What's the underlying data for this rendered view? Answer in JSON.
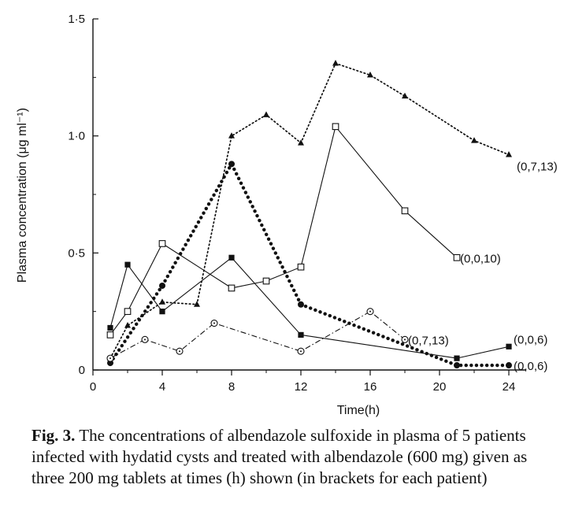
{
  "chart_data": {
    "type": "line",
    "xlabel": "Time(h)",
    "ylabel": "Plasma concentration (μg ml⁻¹)",
    "xlim": [
      0,
      25
    ],
    "ylim": [
      0,
      1.5
    ],
    "x_ticks": [
      0,
      4,
      8,
      12,
      16,
      20,
      24
    ],
    "x_tick_labels": [
      "0",
      "4",
      "8",
      "12",
      "16",
      "20",
      "24"
    ],
    "y_ticks": [
      0,
      0.5,
      1.0,
      1.5
    ],
    "y_tick_labels": [
      "0",
      "0·5",
      "1·0",
      "1·5"
    ],
    "grid": false,
    "legend": "none (labels at line ends)",
    "series": [
      {
        "label": "(0,7,13)",
        "marker": "filled-triangle",
        "line": "dotted",
        "points": [
          [
            1,
            0.05
          ],
          [
            2,
            0.19
          ],
          [
            4,
            0.29
          ],
          [
            6,
            0.28
          ],
          [
            8,
            1.0
          ],
          [
            10,
            1.09
          ],
          [
            12,
            0.97
          ],
          [
            14,
            1.31
          ],
          [
            16,
            1.26
          ],
          [
            18,
            1.17
          ],
          [
            22,
            0.98
          ],
          [
            24,
            0.92
          ]
        ]
      },
      {
        "label": "(0,0,10)",
        "marker": "open-square",
        "line": "solid",
        "points": [
          [
            1,
            0.15
          ],
          [
            2,
            0.25
          ],
          [
            4,
            0.54
          ],
          [
            8,
            0.35
          ],
          [
            10,
            0.38
          ],
          [
            12,
            0.44
          ],
          [
            14,
            1.04
          ],
          [
            18,
            0.68
          ],
          [
            21,
            0.48
          ]
        ]
      },
      {
        "label": "(0,0,6)",
        "marker": "filled-circle",
        "line": "heavy-dotted",
        "points": [
          [
            1,
            0.03
          ],
          [
            4,
            0.36
          ],
          [
            8,
            0.88
          ],
          [
            12,
            0.28
          ],
          [
            21,
            0.02
          ],
          [
            24,
            0.02
          ]
        ]
      },
      {
        "label": "(0,0,6)",
        "marker": "filled-square",
        "line": "solid",
        "points": [
          [
            1,
            0.18
          ],
          [
            2,
            0.45
          ],
          [
            4,
            0.25
          ],
          [
            8,
            0.48
          ],
          [
            12,
            0.15
          ],
          [
            21,
            0.05
          ],
          [
            24,
            0.1
          ]
        ]
      },
      {
        "label": "(0,7,13)",
        "marker": "open-circle-dot",
        "line": "dash-dot",
        "points": [
          [
            1,
            0.05
          ],
          [
            3,
            0.13
          ],
          [
            5,
            0.08
          ],
          [
            7,
            0.2
          ],
          [
            12,
            0.08
          ],
          [
            16,
            0.25
          ],
          [
            18,
            0.13
          ]
        ]
      }
    ]
  },
  "caption": {
    "label": "Fig. 3.",
    "text": " The concentrations of albendazole sulfoxide in plasma of 5 patients infected with hydatid cysts and treated with albendazole (600 mg) given as three 200 mg tablets at times (h) shown (in brackets for each patient)"
  }
}
